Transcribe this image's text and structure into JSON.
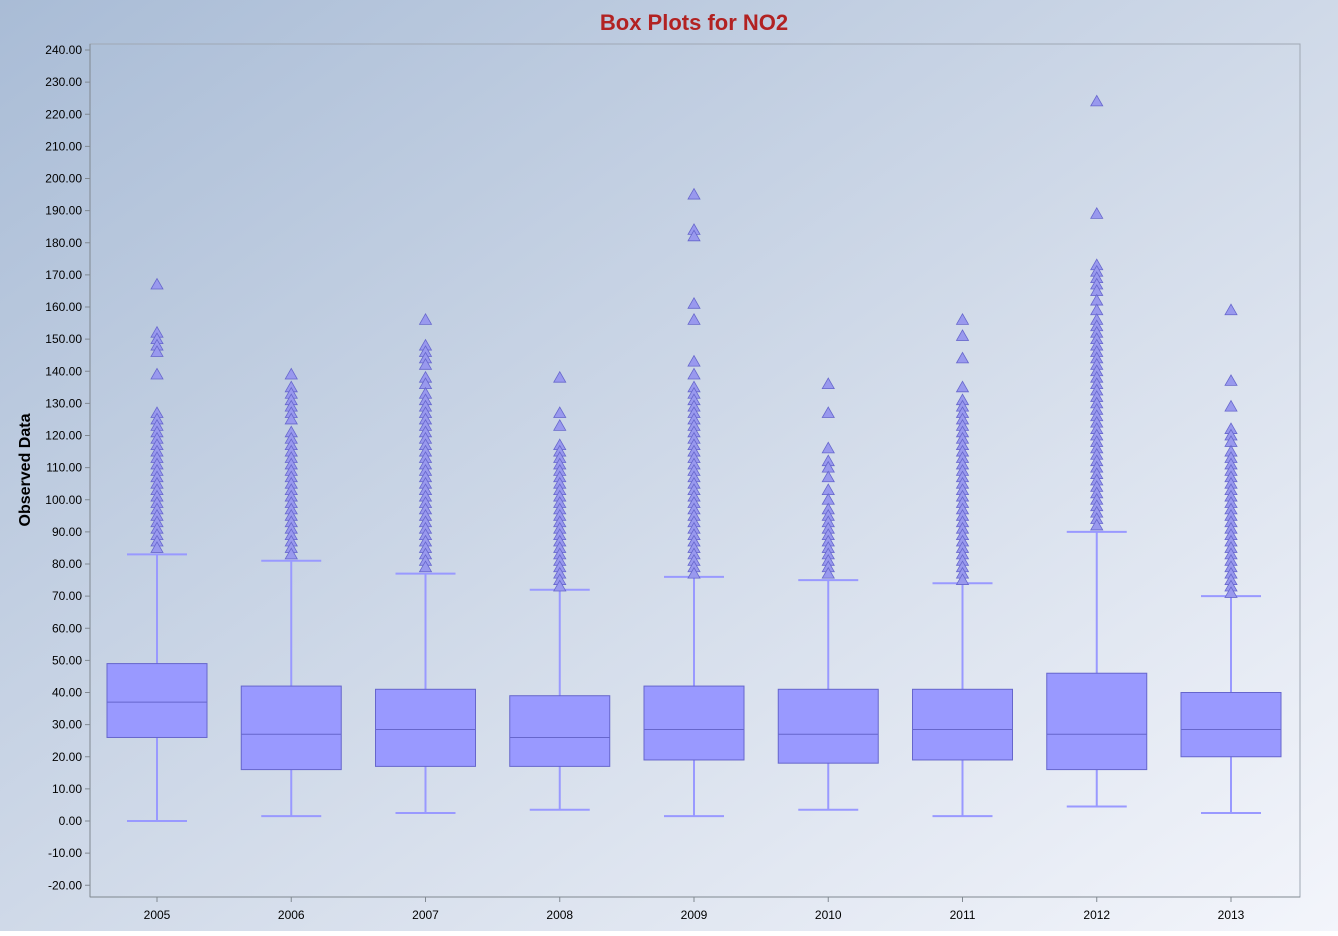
{
  "chart_data": {
    "type": "box",
    "title": "Box Plots for NO2",
    "xlabel": "",
    "ylabel": "Observed Data",
    "ylim": [
      -20,
      240
    ],
    "ytick_step": 10,
    "ytick_labels": [
      "240.00",
      "230.00",
      "220.00",
      "210.00",
      "200.00",
      "190.00",
      "180.00",
      "170.00",
      "160.00",
      "150.00",
      "140.00",
      "130.00",
      "120.00",
      "110.00",
      "100.00",
      "90.00",
      "80.00",
      "70.00",
      "60.00",
      "50.00",
      "40.00",
      "30.00",
      "20.00",
      "10.00",
      "0.00",
      "-10.00",
      "-20.00"
    ],
    "categories": [
      "2005",
      "2006",
      "2007",
      "2008",
      "2009",
      "2010",
      "2011",
      "2012",
      "2013"
    ],
    "grid": false,
    "legend": "none",
    "colors": {
      "title": "#b22222",
      "box_fill": "#9999ff",
      "box_stroke": "#6666cc",
      "whisker": "#9999ff",
      "outlier_fill": "#9999ee",
      "outlier_stroke": "#6666cc",
      "background_top_left": "#a9bcd6",
      "background_bottom_right": "#f3f5fb"
    },
    "boxes": [
      {
        "category": "2005",
        "min": 0,
        "q1": 26,
        "median": 37,
        "q3": 49,
        "max": 83,
        "outliers": [
          167,
          152,
          150,
          148,
          146,
          139,
          127,
          125,
          123,
          121,
          119,
          117,
          115,
          113,
          111,
          109,
          107,
          105,
          103,
          101,
          99,
          97,
          95,
          93,
          91,
          89,
          87,
          85
        ]
      },
      {
        "category": "2006",
        "min": 1.5,
        "q1": 16,
        "median": 27,
        "q3": 42,
        "max": 81,
        "outliers": [
          139,
          135,
          133,
          131,
          129,
          127,
          125,
          121,
          119,
          117,
          115,
          113,
          111,
          109,
          107,
          105,
          103,
          101,
          99,
          97,
          95,
          93,
          91,
          89,
          87,
          85,
          83
        ]
      },
      {
        "category": "2007",
        "min": 2.5,
        "q1": 17,
        "median": 28.5,
        "q3": 41,
        "max": 77,
        "outliers": [
          156,
          148,
          146,
          144,
          142,
          138,
          136,
          133,
          131,
          129,
          127,
          125,
          123,
          121,
          119,
          117,
          115,
          113,
          111,
          109,
          107,
          105,
          103,
          101,
          99,
          97,
          95,
          93,
          91,
          89,
          87,
          85,
          83,
          81,
          79
        ]
      },
      {
        "category": "2008",
        "min": 3.5,
        "q1": 17,
        "median": 26,
        "q3": 39,
        "max": 72,
        "outliers": [
          138,
          127,
          123,
          117,
          115,
          113,
          111,
          109,
          107,
          105,
          103,
          101,
          99,
          97,
          95,
          93,
          91,
          89,
          87,
          85,
          83,
          81,
          79,
          77,
          75,
          73
        ]
      },
      {
        "category": "2009",
        "min": 1.5,
        "q1": 19,
        "median": 28.5,
        "q3": 42,
        "max": 76,
        "outliers": [
          195,
          184,
          182,
          161,
          156,
          143,
          139,
          135,
          133,
          131,
          129,
          127,
          125,
          123,
          121,
          119,
          117,
          115,
          113,
          111,
          109,
          107,
          105,
          103,
          101,
          99,
          97,
          95,
          93,
          91,
          89,
          87,
          85,
          83,
          81,
          79,
          77
        ]
      },
      {
        "category": "2010",
        "min": 3.5,
        "q1": 18,
        "median": 27,
        "q3": 41,
        "max": 75,
        "outliers": [
          136,
          127,
          116,
          112,
          110,
          107,
          103,
          100,
          97,
          95,
          93,
          91,
          89,
          87,
          85,
          83,
          81,
          79,
          77
        ]
      },
      {
        "category": "2011",
        "min": 1.5,
        "q1": 19,
        "median": 28.5,
        "q3": 41,
        "max": 74,
        "outliers": [
          156,
          151,
          144,
          135,
          131,
          129,
          127,
          125,
          123,
          121,
          119,
          117,
          115,
          113,
          111,
          109,
          107,
          105,
          103,
          101,
          99,
          97,
          95,
          93,
          91,
          89,
          87,
          85,
          83,
          81,
          79,
          77,
          75
        ]
      },
      {
        "category": "2012",
        "min": 4.5,
        "q1": 16,
        "median": 27,
        "q3": 46,
        "max": 90,
        "outliers": [
          224,
          189,
          173,
          171,
          169,
          167,
          165,
          162,
          159,
          156,
          154,
          152,
          150,
          148,
          146,
          144,
          142,
          140,
          138,
          136,
          134,
          132,
          130,
          128,
          126,
          124,
          122,
          120,
          118,
          116,
          114,
          112,
          110,
          108,
          106,
          104,
          102,
          100,
          98,
          96,
          94,
          92
        ]
      },
      {
        "category": "2013",
        "min": 2.5,
        "q1": 20,
        "median": 28.5,
        "q3": 40,
        "max": 70,
        "outliers": [
          159,
          137,
          129,
          122,
          120,
          118,
          115,
          113,
          111,
          109,
          107,
          105,
          103,
          101,
          99,
          97,
          95,
          93,
          91,
          89,
          87,
          85,
          83,
          81,
          79,
          77,
          75,
          73,
          71
        ]
      }
    ]
  }
}
